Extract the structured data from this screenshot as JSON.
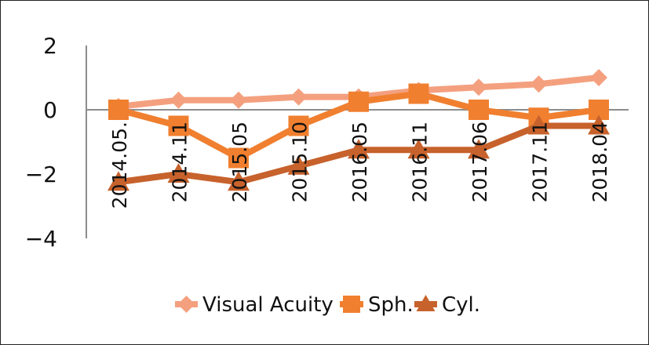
{
  "chart_data": {
    "type": "line",
    "title": "",
    "xlabel": "",
    "ylabel": "",
    "categories": [
      "2014.05.",
      "2014.11",
      "2015.05",
      "2015.10",
      "2016.05",
      "2016.11",
      "2017.06",
      "2017.11",
      "2018.04"
    ],
    "ylim": [
      -4,
      2
    ],
    "yticks": [
      2,
      0,
      -2,
      -4
    ],
    "grid": false,
    "legend_position": "bottom",
    "series": [
      {
        "name": "Visual Acuity",
        "marker": "diamond",
        "color": "#F4A07F",
        "values": [
          0.1,
          0.3,
          0.3,
          0.4,
          0.4,
          0.6,
          0.7,
          0.8,
          1.0
        ]
      },
      {
        "name": "Sph.",
        "marker": "square",
        "color": "#F07F2F",
        "values": [
          0,
          -0.5,
          -1.5,
          -0.5,
          0.25,
          0.5,
          0,
          -0.25,
          0
        ]
      },
      {
        "name": "Cyl.",
        "marker": "triangle",
        "color": "#C7622C",
        "values": [
          -2.25,
          -2.0,
          -2.25,
          -1.75,
          -1.25,
          -1.25,
          -1.25,
          -0.5,
          -0.5
        ]
      }
    ]
  }
}
